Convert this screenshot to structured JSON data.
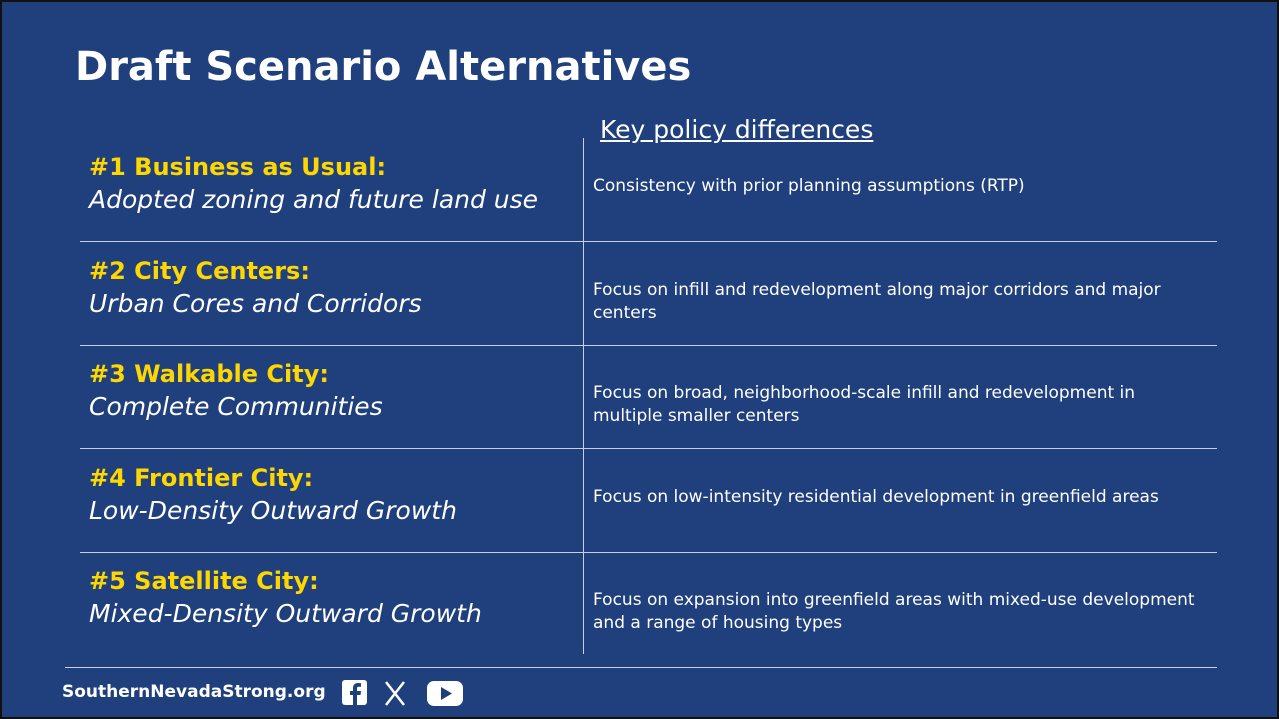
{
  "header": {
    "title": "Draft Scenario Alternatives",
    "column_heading": "Key policy differences"
  },
  "table": {
    "rows": [
      [
        "#1 Business as Usual:",
        "Adopted zoning and future land use",
        "Consistency with prior planning assumptions (RTP)"
      ],
      [
        "#2 City Centers:",
        "Urban Cores and Corridors",
        "Focus on infill and redevelopment along major corridors and major centers"
      ],
      [
        "#3 Walkable City:",
        "Complete Communities",
        "Focus on broad, neighborhood-scale infill and redevelopment in multiple smaller centers"
      ],
      [
        "#4 Frontier City:",
        "Low-Density Outward Growth",
        "Focus on low-intensity residential development in greenfield areas"
      ],
      [
        "#5 Satellite City:",
        "Mixed-Density Outward Growth",
        "Focus on expansion into greenfield areas with mixed-use development and a range of housing types"
      ]
    ]
  },
  "footer": {
    "website": "SouthernNevadaStrong.org"
  }
}
